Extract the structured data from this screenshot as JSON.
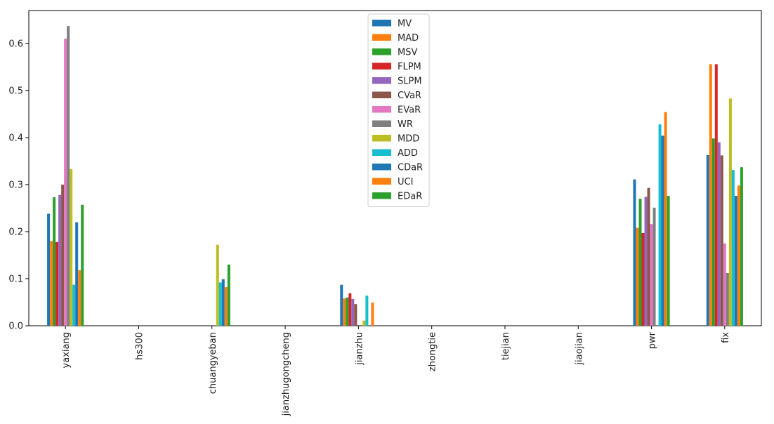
{
  "chart_data": {
    "type": "bar",
    "title": "",
    "xlabel": "",
    "ylabel": "",
    "ylim": [
      0,
      0.67
    ],
    "yticks": [
      0.0,
      0.1,
      0.2,
      0.3,
      0.4,
      0.5,
      0.6
    ],
    "ytick_labels": [
      "0.0",
      "0.1",
      "0.2",
      "0.3",
      "0.4",
      "0.5",
      "0.6"
    ],
    "grid": false,
    "legend_position": "top-center",
    "categories": [
      "yaxiang",
      "hs300",
      "chuangyeban",
      "jianzhugongcheng",
      "jianzhu",
      "zhongtie",
      "tiejian",
      "jiaojian",
      "pwr",
      "fix"
    ],
    "series": [
      {
        "name": "MV",
        "color": "#1f77b4",
        "values": [
          0.238,
          0,
          0,
          0,
          0.087,
          0,
          0,
          0,
          0.311,
          0.363
        ]
      },
      {
        "name": "MAD",
        "color": "#ff7f0e",
        "values": [
          0.18,
          0,
          0,
          0,
          0.058,
          0,
          0,
          0,
          0.208,
          0.556
        ]
      },
      {
        "name": "MSV",
        "color": "#2ca02c",
        "values": [
          0.273,
          0,
          0,
          0,
          0.06,
          0,
          0,
          0,
          0.27,
          0.398
        ]
      },
      {
        "name": "FLPM",
        "color": "#d62728",
        "values": [
          0.178,
          0,
          0,
          0,
          0.069,
          0,
          0,
          0,
          0.197,
          0.556
        ]
      },
      {
        "name": "SLPM",
        "color": "#9467bd",
        "values": [
          0.278,
          0,
          0,
          0,
          0.057,
          0,
          0,
          0,
          0.274,
          0.39
        ]
      },
      {
        "name": "CVaR",
        "color": "#8c564b",
        "values": [
          0.3,
          0,
          0,
          0,
          0.046,
          0,
          0,
          0,
          0.293,
          0.362
        ]
      },
      {
        "name": "EVaR",
        "color": "#e377c2",
        "values": [
          0.61,
          0,
          0,
          0,
          0,
          0,
          0,
          0,
          0.216,
          0.175
        ]
      },
      {
        "name": "WR",
        "color": "#7f7f7f",
        "values": [
          0.637,
          0,
          0,
          0,
          0,
          0,
          0,
          0,
          0.251,
          0.112
        ]
      },
      {
        "name": "MDD",
        "color": "#bcbd22",
        "values": [
          0.333,
          0,
          0.172,
          0,
          0.011,
          0,
          0,
          0,
          0,
          0.483
        ]
      },
      {
        "name": "ADD",
        "color": "#17becf",
        "values": [
          0.087,
          0,
          0.092,
          0,
          0.064,
          0,
          0,
          0,
          0.428,
          0.331
        ]
      },
      {
        "name": "CDaR",
        "color": "#1f77b4",
        "values": [
          0.22,
          0,
          0.099,
          0,
          0,
          0,
          0,
          0,
          0.404,
          0.276
        ]
      },
      {
        "name": "UCI",
        "color": "#ff7f0e",
        "values": [
          0.118,
          0,
          0.082,
          0,
          0.049,
          0,
          0,
          0,
          0.454,
          0.298
        ]
      },
      {
        "name": "EDaR",
        "color": "#2ca02c",
        "values": [
          0.257,
          0,
          0.13,
          0,
          0,
          0,
          0,
          0,
          0.276,
          0.337
        ]
      }
    ]
  }
}
